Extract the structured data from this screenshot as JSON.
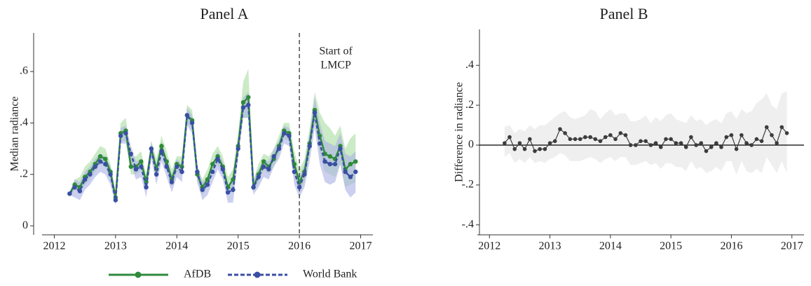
{
  "chart_data": [
    {
      "type": "line",
      "title": "Panel A",
      "ylabel": "Median radiance",
      "x": [
        2012.25,
        2012.333,
        2012.417,
        2012.5,
        2012.583,
        2012.667,
        2012.75,
        2012.833,
        2012.917,
        2013,
        2013.083,
        2013.167,
        2013.25,
        2013.333,
        2013.417,
        2013.5,
        2013.583,
        2013.667,
        2013.75,
        2013.833,
        2013.917,
        2014,
        2014.083,
        2014.167,
        2014.25,
        2014.333,
        2014.417,
        2014.5,
        2014.583,
        2014.667,
        2014.75,
        2014.833,
        2014.917,
        2015,
        2015.083,
        2015.167,
        2015.25,
        2015.333,
        2015.417,
        2015.5,
        2015.583,
        2015.667,
        2015.75,
        2015.833,
        2015.917,
        2016,
        2016.083,
        2016.167,
        2016.25,
        2016.333,
        2016.417,
        2016.5,
        2016.583,
        2016.667,
        2016.75,
        2016.833,
        2016.917
      ],
      "series": [
        {
          "name": "AfDB",
          "color": "#2f8a3b",
          "band_color": "#a9dca0",
          "dash": false,
          "values": [
            0.125,
            0.16,
            0.15,
            0.19,
            0.21,
            0.24,
            0.27,
            0.26,
            0.21,
            0.11,
            0.36,
            0.37,
            0.23,
            0.23,
            0.25,
            0.17,
            0.3,
            0.22,
            0.31,
            0.25,
            0.18,
            0.24,
            0.23,
            0.43,
            0.41,
            0.2,
            0.15,
            0.18,
            0.24,
            0.27,
            0.23,
            0.15,
            0.18,
            0.31,
            0.48,
            0.5,
            0.15,
            0.2,
            0.25,
            0.23,
            0.26,
            0.31,
            0.37,
            0.36,
            0.24,
            0.17,
            0.21,
            0.32,
            0.45,
            0.35,
            0.28,
            0.27,
            0.26,
            0.31,
            0.22,
            0.24,
            0.25
          ],
          "upper": [
            0.13,
            0.18,
            0.19,
            0.23,
            0.25,
            0.28,
            0.31,
            0.3,
            0.24,
            0.13,
            0.4,
            0.42,
            0.27,
            0.27,
            0.29,
            0.2,
            0.33,
            0.26,
            0.35,
            0.29,
            0.22,
            0.27,
            0.27,
            0.47,
            0.45,
            0.23,
            0.18,
            0.22,
            0.28,
            0.31,
            0.27,
            0.19,
            0.22,
            0.36,
            0.56,
            0.61,
            0.18,
            0.24,
            0.28,
            0.27,
            0.3,
            0.35,
            0.4,
            0.4,
            0.29,
            0.22,
            0.26,
            0.38,
            0.52,
            0.44,
            0.4,
            0.38,
            0.35,
            0.39,
            0.3,
            0.34,
            0.36
          ],
          "lower": [
            0.12,
            0.14,
            0.13,
            0.16,
            0.18,
            0.21,
            0.24,
            0.23,
            0.18,
            0.09,
            0.33,
            0.33,
            0.2,
            0.2,
            0.22,
            0.14,
            0.27,
            0.19,
            0.28,
            0.22,
            0.15,
            0.21,
            0.2,
            0.4,
            0.38,
            0.17,
            0.12,
            0.15,
            0.21,
            0.24,
            0.2,
            0.12,
            0.15,
            0.28,
            0.42,
            0.42,
            0.13,
            0.17,
            0.22,
            0.2,
            0.23,
            0.28,
            0.34,
            0.33,
            0.2,
            0.13,
            0.17,
            0.28,
            0.4,
            0.28,
            0.21,
            0.2,
            0.19,
            0.24,
            0.15,
            0.16,
            0.17
          ]
        },
        {
          "name": "World Bank",
          "color": "#3a4fa3",
          "band_color": "#aab0e4",
          "dash": true,
          "values": [
            0.125,
            0.15,
            0.135,
            0.18,
            0.2,
            0.23,
            0.25,
            0.24,
            0.2,
            0.1,
            0.35,
            0.36,
            0.28,
            0.22,
            0.23,
            0.15,
            0.3,
            0.2,
            0.29,
            0.23,
            0.17,
            0.23,
            0.21,
            0.43,
            0.4,
            0.21,
            0.14,
            0.16,
            0.21,
            0.26,
            0.22,
            0.13,
            0.14,
            0.3,
            0.46,
            0.47,
            0.15,
            0.19,
            0.23,
            0.22,
            0.27,
            0.3,
            0.36,
            0.35,
            0.21,
            0.15,
            0.2,
            0.31,
            0.44,
            0.32,
            0.25,
            0.24,
            0.24,
            0.3,
            0.21,
            0.19,
            0.21
          ],
          "upper": [
            0.13,
            0.18,
            0.17,
            0.21,
            0.23,
            0.26,
            0.28,
            0.27,
            0.23,
            0.12,
            0.38,
            0.39,
            0.31,
            0.25,
            0.26,
            0.18,
            0.33,
            0.23,
            0.32,
            0.26,
            0.2,
            0.26,
            0.24,
            0.46,
            0.43,
            0.24,
            0.17,
            0.19,
            0.24,
            0.29,
            0.25,
            0.16,
            0.17,
            0.33,
            0.5,
            0.52,
            0.18,
            0.22,
            0.26,
            0.25,
            0.3,
            0.33,
            0.39,
            0.38,
            0.25,
            0.19,
            0.24,
            0.36,
            0.5,
            0.4,
            0.33,
            0.32,
            0.31,
            0.36,
            0.28,
            0.27,
            0.29
          ],
          "lower": [
            0.12,
            0.11,
            0.1,
            0.14,
            0.16,
            0.19,
            0.21,
            0.2,
            0.16,
            0.08,
            0.32,
            0.32,
            0.24,
            0.18,
            0.19,
            0.11,
            0.26,
            0.16,
            0.25,
            0.19,
            0.13,
            0.19,
            0.17,
            0.39,
            0.36,
            0.17,
            0.1,
            0.12,
            0.17,
            0.22,
            0.18,
            0.09,
            0.09,
            0.26,
            0.42,
            0.42,
            0.12,
            0.15,
            0.19,
            0.18,
            0.23,
            0.26,
            0.32,
            0.31,
            0.16,
            0.11,
            0.15,
            0.25,
            0.38,
            0.24,
            0.17,
            0.16,
            0.17,
            0.24,
            0.14,
            0.11,
            0.13
          ]
        }
      ],
      "xlim": [
        2011.8,
        2017.2
      ],
      "xticks": [
        2012,
        2013,
        2014,
        2015,
        2016,
        2017
      ],
      "ylim": [
        -0.035,
        0.75
      ],
      "yticks": [
        0,
        {
          "value": 0.2,
          "label": ".2"
        },
        {
          "value": 0.4,
          "label": ".4"
        },
        {
          "value": 0.6,
          "label": ".6"
        }
      ],
      "annotation": {
        "x": 2016,
        "lines": [
          "Start of",
          "LMCP"
        ]
      },
      "legend": "bottom"
    },
    {
      "type": "line",
      "title": "Panel B",
      "ylabel": "Difference in radiance",
      "x": [
        2012.25,
        2012.333,
        2012.417,
        2012.5,
        2012.583,
        2012.667,
        2012.75,
        2012.833,
        2012.917,
        2013,
        2013.083,
        2013.167,
        2013.25,
        2013.333,
        2013.417,
        2013.5,
        2013.583,
        2013.667,
        2013.75,
        2013.833,
        2013.917,
        2014,
        2014.083,
        2014.167,
        2014.25,
        2014.333,
        2014.417,
        2014.5,
        2014.583,
        2014.667,
        2014.75,
        2014.833,
        2014.917,
        2015,
        2015.083,
        2015.167,
        2015.25,
        2015.333,
        2015.417,
        2015.5,
        2015.583,
        2015.667,
        2015.75,
        2015.833,
        2015.917,
        2016,
        2016.083,
        2016.167,
        2016.25,
        2016.333,
        2016.417,
        2016.5,
        2016.583,
        2016.667,
        2016.75,
        2016.833,
        2016.917
      ],
      "series": [
        {
          "color": "#3c3c3c",
          "band_color": "#e4e4e4",
          "dash": false,
          "values": [
            0.01,
            0.04,
            -0.02,
            0.01,
            -0.02,
            0.03,
            -0.03,
            -0.02,
            -0.02,
            0.01,
            0.02,
            0.08,
            0.06,
            0.03,
            0.03,
            0.03,
            0.04,
            0.04,
            0.03,
            0.02,
            0.04,
            0.05,
            0.03,
            0.06,
            0.05,
            0.0,
            0.0,
            0.02,
            0.02,
            0.0,
            0.01,
            -0.01,
            0.03,
            0.03,
            0.01,
            0.01,
            -0.01,
            0.04,
            0.0,
            0.01,
            -0.03,
            -0.01,
            0.01,
            -0.01,
            0.04,
            0.05,
            -0.02,
            0.05,
            0.01,
            0.0,
            0.03,
            0.02,
            0.09,
            0.05,
            0.01,
            0.09,
            0.06
          ],
          "upper": [
            0.09,
            0.1,
            0.06,
            0.08,
            0.07,
            0.1,
            0.08,
            0.1,
            0.1,
            0.12,
            0.14,
            0.16,
            0.17,
            0.14,
            0.13,
            0.14,
            0.15,
            0.18,
            0.17,
            0.13,
            0.16,
            0.18,
            0.15,
            0.16,
            0.16,
            0.12,
            0.12,
            0.13,
            0.15,
            0.11,
            0.14,
            0.12,
            0.15,
            0.16,
            0.13,
            0.12,
            0.11,
            0.15,
            0.12,
            0.13,
            0.1,
            0.12,
            0.13,
            0.11,
            0.16,
            0.17,
            0.13,
            0.18,
            0.16,
            0.17,
            0.21,
            0.23,
            0.26,
            0.2,
            0.18,
            0.26,
            0.27
          ],
          "lower": [
            -0.06,
            -0.04,
            -0.09,
            -0.07,
            -0.09,
            -0.06,
            -0.09,
            -0.08,
            -0.09,
            -0.07,
            -0.06,
            -0.04,
            -0.05,
            -0.08,
            -0.08,
            -0.08,
            -0.07,
            -0.06,
            -0.07,
            -0.09,
            -0.07,
            -0.06,
            -0.08,
            -0.06,
            -0.06,
            -0.1,
            -0.1,
            -0.09,
            -0.08,
            -0.1,
            -0.09,
            -0.12,
            -0.09,
            -0.09,
            -0.11,
            -0.11,
            -0.13,
            -0.08,
            -0.12,
            -0.11,
            -0.14,
            -0.13,
            -0.11,
            -0.13,
            -0.08,
            -0.08,
            -0.15,
            -0.08,
            -0.13,
            -0.14,
            -0.12,
            -0.14,
            -0.06,
            -0.1,
            -0.14,
            -0.08,
            -0.14
          ]
        }
      ],
      "xlim": [
        2011.8,
        2017.2
      ],
      "xticks": [
        2012,
        2013,
        2014,
        2015,
        2016,
        2017
      ],
      "ylim": [
        -0.45,
        0.58
      ],
      "yticks": [
        {
          "value": -0.4,
          "label": "-.4"
        },
        {
          "value": -0.2,
          "label": "-.2"
        },
        0,
        {
          "value": 0.2,
          "label": ".2"
        },
        {
          "value": 0.4,
          "label": ".4"
        }
      ],
      "reference_line": 0
    }
  ]
}
